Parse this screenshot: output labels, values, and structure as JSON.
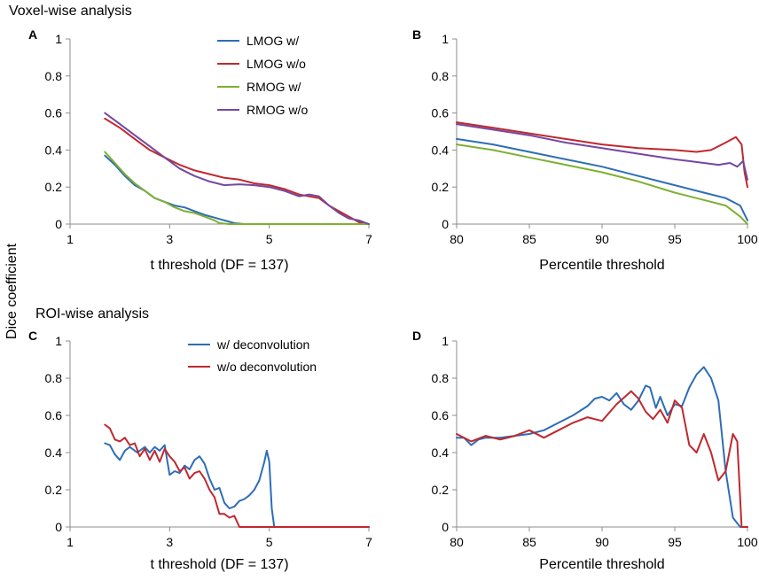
{
  "figure": {
    "top_title": "Voxel-wise analysis",
    "bottom_title": "ROI-wise analysis",
    "shared_ylabel": "Dice coefficient"
  },
  "chart_data": [
    {
      "panel": "A",
      "type": "line",
      "title": "",
      "xlabel": "t threshold (DF = 137)",
      "ylabel": "Dice coefficient",
      "xlim": [
        1,
        7
      ],
      "ylim": [
        0,
        1
      ],
      "xticks": [
        1,
        3,
        5,
        7
      ],
      "yticks": [
        0,
        0.2,
        0.4,
        0.6,
        0.8,
        1
      ],
      "xtick_labels": [
        "1",
        "3",
        "5",
        "7"
      ],
      "ytick_labels": [
        "0",
        "0.2",
        "0.4",
        "0.6",
        "0.8",
        "1"
      ],
      "legend_position": "top-right",
      "series": [
        {
          "name": "LMOG w/",
          "color": "#2e6db6",
          "x": [
            1.7,
            1.9,
            2.1,
            2.3,
            2.5,
            2.7,
            2.9,
            3.1,
            3.3,
            3.5,
            3.7,
            3.9,
            4.1,
            4.3,
            4.5,
            5,
            6,
            7
          ],
          "y": [
            0.37,
            0.32,
            0.26,
            0.21,
            0.18,
            0.14,
            0.12,
            0.1,
            0.09,
            0.07,
            0.05,
            0.035,
            0.02,
            0.005,
            0,
            0,
            0,
            0
          ]
        },
        {
          "name": "LMOG w/o",
          "color": "#c0282e",
          "x": [
            1.7,
            2.0,
            2.3,
            2.6,
            2.9,
            3.2,
            3.5,
            3.8,
            4.1,
            4.4,
            4.7,
            5.0,
            5.3,
            5.6,
            5.8,
            6.0,
            6.2,
            6.4,
            6.6,
            6.8,
            7.0
          ],
          "y": [
            0.57,
            0.52,
            0.46,
            0.4,
            0.36,
            0.32,
            0.29,
            0.27,
            0.25,
            0.24,
            0.22,
            0.21,
            0.19,
            0.16,
            0.15,
            0.14,
            0.1,
            0.07,
            0.04,
            0.01,
            0
          ]
        },
        {
          "name": "RMOG w/",
          "color": "#7eb031",
          "x": [
            1.7,
            1.9,
            2.1,
            2.3,
            2.5,
            2.7,
            2.9,
            3.1,
            3.3,
            3.5,
            3.7,
            3.9,
            4.0,
            4.2,
            4.4,
            5,
            6,
            7
          ],
          "y": [
            0.39,
            0.33,
            0.27,
            0.22,
            0.18,
            0.14,
            0.12,
            0.09,
            0.07,
            0.06,
            0.04,
            0.02,
            0.005,
            0,
            0,
            0,
            0,
            0
          ]
        },
        {
          "name": "RMOG w/o",
          "color": "#7448a0",
          "x": [
            1.7,
            2.0,
            2.3,
            2.6,
            2.9,
            3.2,
            3.5,
            3.8,
            4.1,
            4.4,
            4.7,
            5.0,
            5.3,
            5.6,
            5.8,
            6.0,
            6.2,
            6.4,
            6.6,
            6.8,
            7.0
          ],
          "y": [
            0.6,
            0.54,
            0.48,
            0.42,
            0.36,
            0.3,
            0.26,
            0.23,
            0.21,
            0.215,
            0.21,
            0.2,
            0.18,
            0.15,
            0.16,
            0.15,
            0.1,
            0.06,
            0.03,
            0.02,
            0
          ]
        }
      ]
    },
    {
      "panel": "B",
      "type": "line",
      "title": "",
      "xlabel": "Percentile threshold",
      "ylabel": "Dice coefficient",
      "xlim": [
        80,
        100
      ],
      "ylim": [
        0,
        1
      ],
      "xticks": [
        80,
        85,
        90,
        95,
        100
      ],
      "yticks": [
        0,
        0.2,
        0.4,
        0.6,
        0.8,
        1
      ],
      "xtick_labels": [
        "80",
        "85",
        "90",
        "95",
        "100"
      ],
      "ytick_labels": [
        "0",
        "0.2",
        "0.4",
        "0.6",
        "0.8",
        "1"
      ],
      "legend_position": "none",
      "series": [
        {
          "name": "LMOG w/",
          "color": "#2e6db6",
          "x": [
            80,
            82.5,
            85,
            87.5,
            90,
            92.5,
            95,
            97,
            98.5,
            99.5,
            100
          ],
          "y": [
            0.46,
            0.43,
            0.39,
            0.35,
            0.31,
            0.26,
            0.21,
            0.17,
            0.14,
            0.1,
            0.02
          ]
        },
        {
          "name": "LMOG w/o",
          "color": "#c0282e",
          "x": [
            80,
            82.5,
            85,
            87.5,
            90,
            92.5,
            95,
            96.5,
            97.5,
            98.5,
            99.2,
            99.6,
            99.8,
            100
          ],
          "y": [
            0.55,
            0.52,
            0.49,
            0.46,
            0.43,
            0.41,
            0.4,
            0.39,
            0.4,
            0.44,
            0.47,
            0.43,
            0.28,
            0.2
          ]
        },
        {
          "name": "RMOG w/",
          "color": "#7eb031",
          "x": [
            80,
            82.5,
            85,
            87.5,
            90,
            92.5,
            95,
            97,
            98.5,
            99.5,
            100
          ],
          "y": [
            0.43,
            0.4,
            0.36,
            0.32,
            0.28,
            0.23,
            0.17,
            0.13,
            0.1,
            0.04,
            0
          ]
        },
        {
          "name": "RMOG w/o",
          "color": "#7448a0",
          "x": [
            80,
            82.5,
            85,
            87.5,
            90,
            92.5,
            95,
            96,
            97,
            98,
            98.8,
            99.3,
            99.7,
            100
          ],
          "y": [
            0.54,
            0.51,
            0.48,
            0.44,
            0.41,
            0.38,
            0.35,
            0.34,
            0.33,
            0.32,
            0.33,
            0.31,
            0.34,
            0.24
          ]
        }
      ]
    },
    {
      "panel": "C",
      "type": "line",
      "title": "",
      "xlabel": "t threshold (DF = 137)",
      "ylabel": "Dice coefficient",
      "xlim": [
        1,
        7
      ],
      "ylim": [
        0,
        1
      ],
      "xticks": [
        1,
        3,
        5,
        7
      ],
      "yticks": [
        0,
        0.2,
        0.4,
        0.6,
        0.8,
        1
      ],
      "xtick_labels": [
        "1",
        "3",
        "5",
        "7"
      ],
      "ytick_labels": [
        "0",
        "0.2",
        "0.4",
        "0.6",
        "0.8",
        "1"
      ],
      "legend_position": "top-center",
      "series": [
        {
          "name": "w/ deconvolution",
          "color": "#2e6db6",
          "x": [
            1.7,
            1.8,
            1.9,
            2.0,
            2.1,
            2.2,
            2.35,
            2.5,
            2.6,
            2.7,
            2.8,
            2.9,
            3.0,
            3.1,
            3.2,
            3.3,
            3.4,
            3.5,
            3.6,
            3.7,
            3.8,
            3.9,
            4.0,
            4.1,
            4.2,
            4.3,
            4.4,
            4.5,
            4.6,
            4.7,
            4.8,
            4.9,
            4.95,
            5.0,
            5.05,
            5.1,
            5.2,
            6,
            7
          ],
          "y": [
            0.45,
            0.44,
            0.39,
            0.36,
            0.41,
            0.43,
            0.4,
            0.43,
            0.4,
            0.43,
            0.41,
            0.44,
            0.28,
            0.3,
            0.29,
            0.33,
            0.31,
            0.36,
            0.38,
            0.34,
            0.26,
            0.2,
            0.21,
            0.13,
            0.1,
            0.11,
            0.14,
            0.15,
            0.17,
            0.2,
            0.25,
            0.35,
            0.41,
            0.35,
            0.1,
            0,
            0,
            0,
            0
          ]
        },
        {
          "name": "w/o deconvolution",
          "color": "#c0282e",
          "x": [
            1.7,
            1.8,
            1.9,
            2.0,
            2.1,
            2.2,
            2.3,
            2.4,
            2.5,
            2.6,
            2.7,
            2.8,
            2.9,
            3.0,
            3.1,
            3.2,
            3.3,
            3.4,
            3.5,
            3.6,
            3.7,
            3.8,
            3.9,
            4.0,
            4.1,
            4.2,
            4.3,
            4.4,
            4.5,
            5,
            6,
            7
          ],
          "y": [
            0.55,
            0.53,
            0.47,
            0.46,
            0.48,
            0.44,
            0.45,
            0.38,
            0.42,
            0.36,
            0.41,
            0.35,
            0.42,
            0.38,
            0.35,
            0.3,
            0.32,
            0.26,
            0.29,
            0.3,
            0.26,
            0.2,
            0.16,
            0.07,
            0.07,
            0.05,
            0.06,
            0,
            0,
            0,
            0,
            0
          ]
        }
      ]
    },
    {
      "panel": "D",
      "type": "line",
      "title": "",
      "xlabel": "Percentile threshold",
      "ylabel": "Dice coefficient",
      "xlim": [
        80,
        100
      ],
      "ylim": [
        0,
        1
      ],
      "xticks": [
        80,
        85,
        90,
        95,
        100
      ],
      "yticks": [
        0,
        0.2,
        0.4,
        0.6,
        0.8,
        1
      ],
      "xtick_labels": [
        "80",
        "85",
        "90",
        "95",
        "100"
      ],
      "ytick_labels": [
        "0",
        "0.2",
        "0.4",
        "0.6",
        "0.8",
        "1"
      ],
      "legend_position": "none",
      "series": [
        {
          "name": "w/ deconvolution",
          "color": "#2e6db6",
          "x": [
            80,
            80.5,
            81,
            81.5,
            82,
            83,
            84,
            85,
            86,
            87,
            88,
            89,
            89.5,
            90,
            90.5,
            91,
            91.5,
            92,
            92.5,
            93,
            93.3,
            93.7,
            94,
            94.5,
            95,
            95.5,
            96,
            96.5,
            97,
            97.5,
            98,
            98.5,
            99,
            99.5,
            100
          ],
          "y": [
            0.48,
            0.48,
            0.44,
            0.47,
            0.48,
            0.48,
            0.49,
            0.5,
            0.52,
            0.56,
            0.6,
            0.65,
            0.69,
            0.7,
            0.68,
            0.72,
            0.66,
            0.63,
            0.68,
            0.76,
            0.75,
            0.64,
            0.7,
            0.6,
            0.66,
            0.65,
            0.75,
            0.82,
            0.86,
            0.8,
            0.68,
            0.3,
            0.05,
            0,
            0
          ]
        },
        {
          "name": "w/o deconvolution",
          "color": "#c0282e",
          "x": [
            80,
            81,
            82,
            83,
            84,
            85,
            86,
            87,
            88,
            89,
            90,
            91,
            92,
            92.5,
            93,
            93.5,
            94,
            94.5,
            95,
            95.5,
            96,
            96.5,
            97,
            97.5,
            98,
            98.5,
            99,
            99.3,
            99.6,
            100
          ],
          "y": [
            0.5,
            0.46,
            0.49,
            0.47,
            0.49,
            0.52,
            0.48,
            0.52,
            0.56,
            0.59,
            0.57,
            0.66,
            0.73,
            0.69,
            0.62,
            0.58,
            0.63,
            0.56,
            0.68,
            0.64,
            0.44,
            0.4,
            0.5,
            0.4,
            0.25,
            0.3,
            0.5,
            0.46,
            0,
            0
          ]
        }
      ]
    }
  ]
}
